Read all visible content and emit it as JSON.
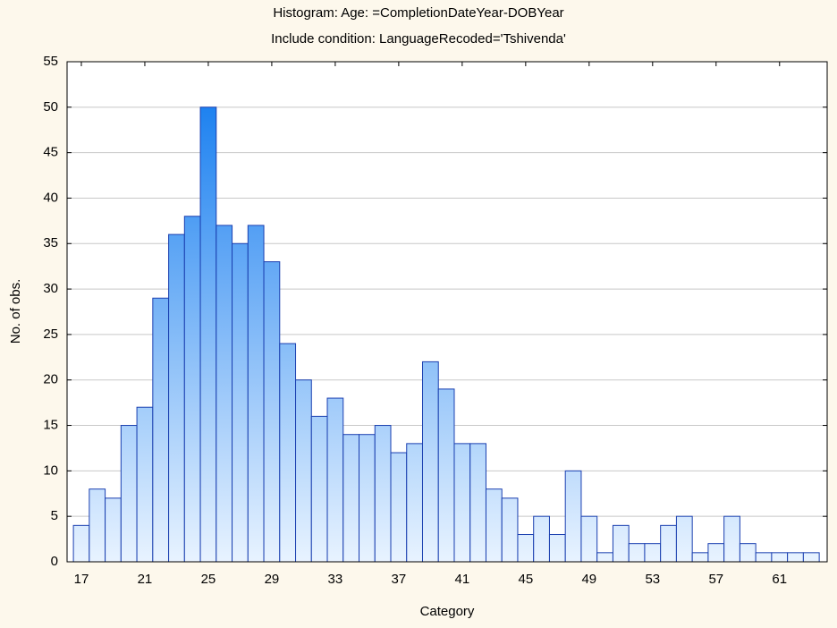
{
  "chart_data": {
    "type": "histogram",
    "title": "Histogram: Age: =CompletionDateYear-DOBYear",
    "subtitle": "Include condition: LanguageRecoded='Tshivenda'",
    "x_label": "Category",
    "y_label": "No. of obs.",
    "x": [
      17,
      18,
      19,
      20,
      21,
      22,
      23,
      24,
      25,
      26,
      27,
      28,
      29,
      30,
      31,
      32,
      33,
      34,
      35,
      36,
      37,
      38,
      39,
      40,
      41,
      42,
      43,
      44,
      45,
      46,
      47,
      48,
      49,
      50,
      51,
      52,
      53,
      54,
      55,
      56,
      57,
      58,
      59,
      60,
      61,
      62,
      63
    ],
    "values": [
      4,
      8,
      7,
      15,
      17,
      29,
      36,
      38,
      50,
      37,
      35,
      37,
      33,
      24,
      20,
      16,
      18,
      14,
      14,
      15,
      12,
      13,
      22,
      19,
      13,
      13,
      8,
      7,
      3,
      5,
      3,
      10,
      5,
      1,
      4,
      2,
      2,
      4,
      5,
      1,
      2,
      5,
      2,
      1,
      1,
      1,
      1
    ],
    "xlim": [
      16.1,
      64
    ],
    "xticks": [
      17,
      21,
      25,
      29,
      33,
      37,
      41,
      45,
      49,
      53,
      57,
      61
    ],
    "ylim": [
      0,
      55
    ],
    "yticks": [
      0,
      5,
      10,
      15,
      20,
      25,
      30,
      35,
      40,
      45,
      50,
      55
    ],
    "grid": true,
    "colormap": [
      "#e8f3ff",
      "#1e82f0"
    ],
    "edge_color": "#1a3fb0"
  }
}
